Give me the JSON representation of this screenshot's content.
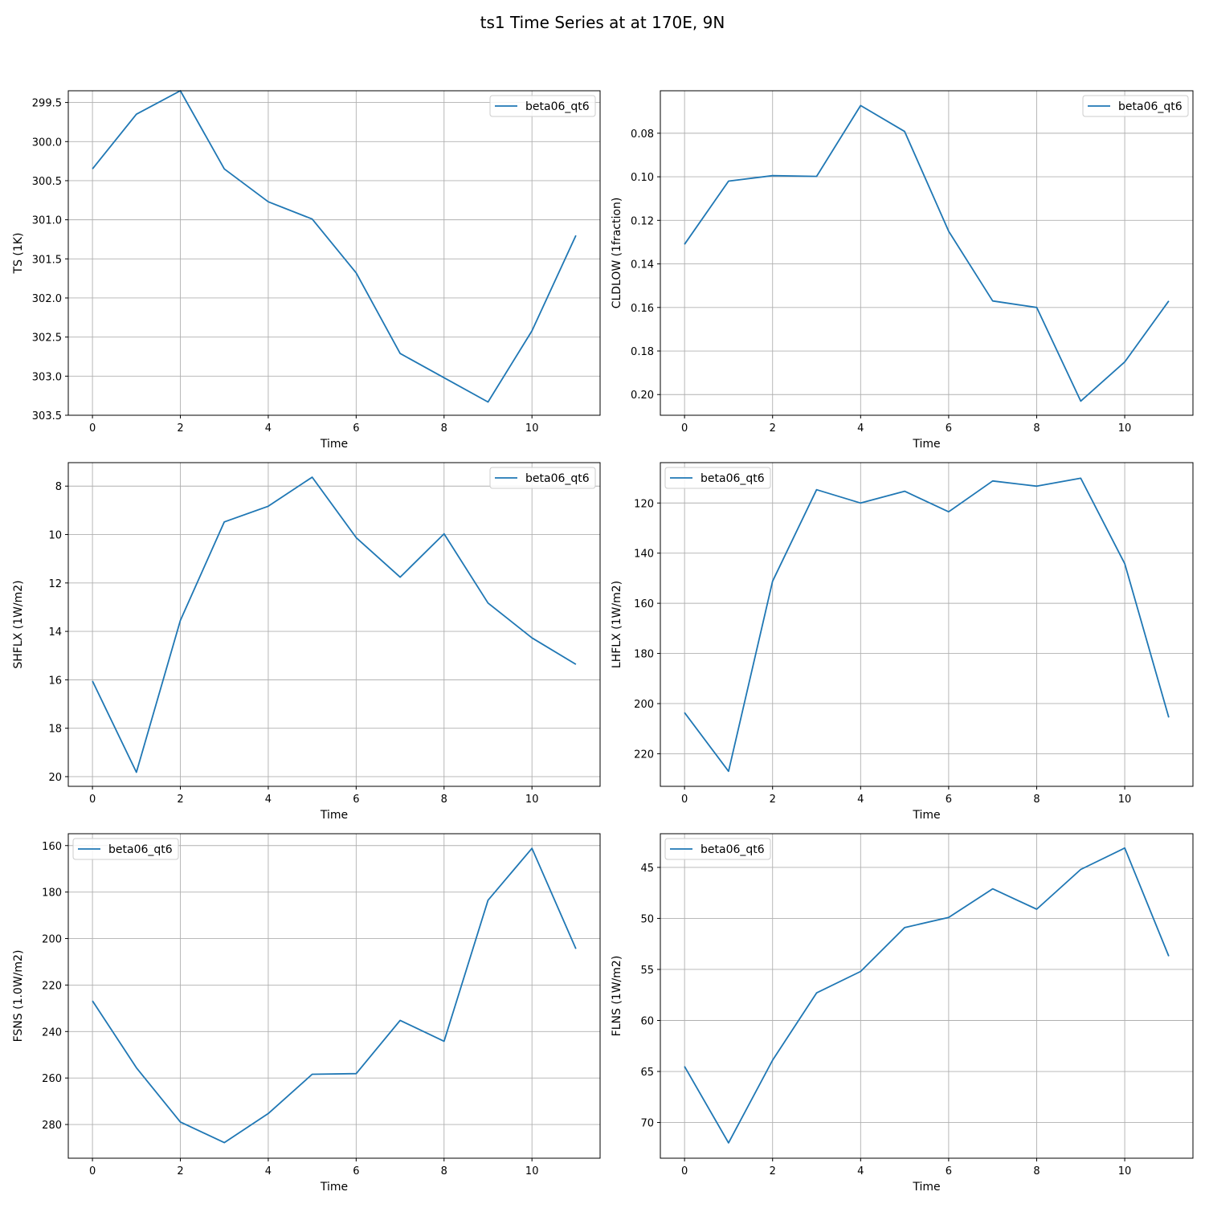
{
  "figure": {
    "title": "ts1 Time Series at at 170E, 9N",
    "line_color": "#1f77b4",
    "grid_color": "#b0b0b0"
  },
  "chart_data": [
    {
      "type": "line",
      "ylabel": "TS (1K)",
      "xlabel": "Time",
      "x": [
        0,
        1,
        2,
        3,
        4,
        5,
        6,
        7,
        8,
        9,
        10,
        11
      ],
      "x_ticks": [
        0,
        2,
        4,
        6,
        8,
        10
      ],
      "xlim": [
        -0.55,
        11.55
      ],
      "y_inverted": true,
      "ylim": [
        299.35,
        303.5
      ],
      "y_ticks": [
        299.5,
        300.0,
        300.5,
        301.0,
        301.5,
        302.0,
        302.5,
        303.0,
        303.5
      ],
      "y_tick_labels": [
        "299.5",
        "300.0",
        "300.5",
        "301.0",
        "301.5",
        "302.0",
        "302.5",
        "303.0",
        "303.5"
      ],
      "series": [
        {
          "name": "beta06_qt6",
          "values": [
            300.35,
            299.65,
            299.35,
            300.35,
            300.77,
            300.99,
            301.68,
            302.71,
            303.02,
            303.33,
            302.42,
            301.2
          ]
        }
      ],
      "legend": "upper right",
      "grid": true
    },
    {
      "type": "line",
      "ylabel": "CLDLOW (1fraction)",
      "xlabel": "Time",
      "x": [
        0,
        1,
        2,
        3,
        4,
        5,
        6,
        7,
        8,
        9,
        10,
        11
      ],
      "x_ticks": [
        0,
        2,
        4,
        6,
        8,
        10
      ],
      "xlim": [
        -0.55,
        11.55
      ],
      "y_inverted": true,
      "ylim": [
        0.0605,
        0.2095
      ],
      "y_ticks": [
        0.08,
        0.1,
        0.12,
        0.14,
        0.16,
        0.18,
        0.2
      ],
      "y_tick_labels": [
        "0.08",
        "0.10",
        "0.12",
        "0.14",
        "0.16",
        "0.18",
        "0.20"
      ],
      "series": [
        {
          "name": "beta06_qt6",
          "values": [
            0.131,
            0.102,
            0.0995,
            0.0998,
            0.0673,
            0.0792,
            0.125,
            0.157,
            0.16,
            0.203,
            0.185,
            0.157
          ]
        }
      ],
      "legend": "upper right",
      "grid": true
    },
    {
      "type": "line",
      "ylabel": "SHFLX (1W/m2)",
      "xlabel": "Time",
      "x": [
        0,
        1,
        2,
        3,
        4,
        5,
        6,
        7,
        8,
        9,
        10,
        11
      ],
      "x_ticks": [
        0,
        2,
        4,
        6,
        8,
        10
      ],
      "xlim": [
        -0.55,
        11.55
      ],
      "y_inverted": true,
      "ylim": [
        7.03,
        20.4
      ],
      "y_ticks": [
        8,
        10,
        12,
        14,
        16,
        18,
        20
      ],
      "y_tick_labels": [
        "8",
        "10",
        "12",
        "14",
        "16",
        "18",
        "20"
      ],
      "series": [
        {
          "name": "beta06_qt6",
          "values": [
            16.05,
            19.82,
            13.55,
            9.48,
            8.83,
            7.63,
            10.13,
            11.76,
            9.97,
            12.83,
            14.27,
            15.36
          ]
        }
      ],
      "legend": "upper right",
      "grid": true
    },
    {
      "type": "line",
      "ylabel": "LHFLX (1W/m2)",
      "xlabel": "Time",
      "x": [
        0,
        1,
        2,
        3,
        4,
        5,
        6,
        7,
        8,
        9,
        10,
        11
      ],
      "x_ticks": [
        0,
        2,
        4,
        6,
        8,
        10
      ],
      "xlim": [
        -0.55,
        11.55
      ],
      "y_inverted": true,
      "ylim": [
        103.9,
        233.0
      ],
      "y_ticks": [
        120,
        140,
        160,
        180,
        200,
        220
      ],
      "y_tick_labels": [
        "120",
        "140",
        "160",
        "180",
        "200",
        "220"
      ],
      "series": [
        {
          "name": "beta06_qt6",
          "values": [
            203.6,
            227.0,
            151.2,
            114.7,
            120.0,
            115.3,
            123.5,
            111.2,
            113.3,
            110.1,
            144.2,
            205.5
          ]
        }
      ],
      "legend": "upper left",
      "grid": true
    },
    {
      "type": "line",
      "ylabel": "FSNS (1.0W/m2)",
      "xlabel": "Time",
      "x": [
        0,
        1,
        2,
        3,
        4,
        5,
        6,
        7,
        8,
        9,
        10,
        11
      ],
      "x_ticks": [
        0,
        2,
        4,
        6,
        8,
        10
      ],
      "xlim": [
        -0.55,
        11.55
      ],
      "y_inverted": true,
      "ylim": [
        154.9,
        294.5
      ],
      "y_ticks": [
        160,
        180,
        200,
        220,
        240,
        260,
        280
      ],
      "y_tick_labels": [
        "160",
        "180",
        "200",
        "220",
        "240",
        "260",
        "280"
      ],
      "series": [
        {
          "name": "beta06_qt6",
          "values": [
            226.8,
            255.6,
            278.9,
            287.8,
            275.3,
            258.4,
            258.1,
            235.2,
            244.2,
            183.5,
            161.2,
            204.4
          ]
        }
      ],
      "legend": "upper left",
      "grid": true
    },
    {
      "type": "line",
      "ylabel": "FLNS (1W/m2)",
      "xlabel": "Time",
      "x": [
        0,
        1,
        2,
        3,
        4,
        5,
        6,
        7,
        8,
        9,
        10,
        11
      ],
      "x_ticks": [
        0,
        2,
        4,
        6,
        8,
        10
      ],
      "xlim": [
        -0.55,
        11.55
      ],
      "y_inverted": true,
      "ylim": [
        41.7,
        73.5
      ],
      "y_ticks": [
        45,
        50,
        55,
        60,
        65,
        70
      ],
      "y_tick_labels": [
        "45",
        "50",
        "55",
        "60",
        "65",
        "70"
      ],
      "series": [
        {
          "name": "beta06_qt6",
          "values": [
            64.5,
            72.0,
            63.9,
            57.3,
            55.2,
            50.9,
            49.9,
            47.1,
            49.1,
            45.2,
            43.1,
            53.7
          ]
        }
      ],
      "legend": "upper left",
      "grid": true
    }
  ]
}
